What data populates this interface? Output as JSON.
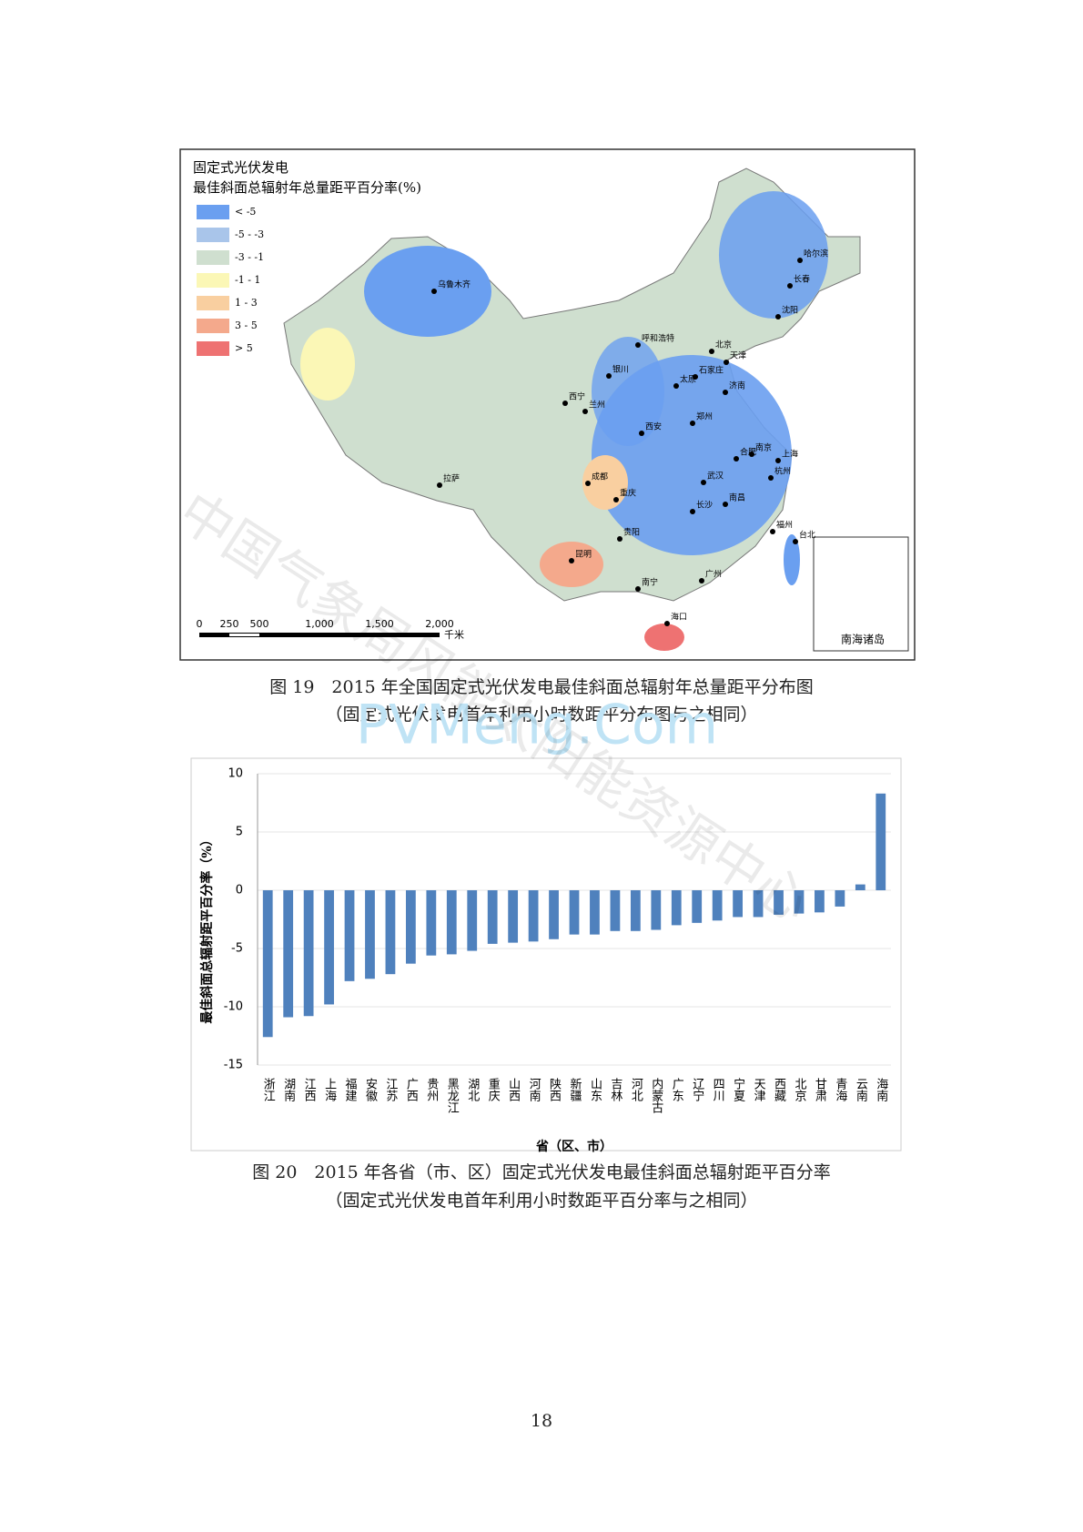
{
  "map": {
    "title": [
      "固定式光伏发电",
      "最佳斜面总辐射年总量距平百分率(%)"
    ],
    "legend": [
      {
        "label": "< -5",
        "color": "#6a9ff0"
      },
      {
        "label": "-5 - -3",
        "color": "#a9c5ea"
      },
      {
        "label": "-3 - -1",
        "color": "#cfdfcf"
      },
      {
        "label": "-1 - 1",
        "color": "#fbf7b6"
      },
      {
        "label": "1 - 3",
        "color": "#f9cfa0"
      },
      {
        "label": "3 - 5",
        "color": "#f4a98c"
      },
      {
        "label": "> 5",
        "color": "#ee7272"
      }
    ],
    "scale": [
      "0",
      "250",
      "500",
      "1,000",
      "1,500",
      "2,000"
    ],
    "scale_unit": "千米",
    "inset": "南海诸岛",
    "cities": [
      "乌鲁木齐",
      "哈尔滨",
      "长春",
      "沈阳",
      "呼和浩特",
      "北京",
      "天津",
      "石家庄",
      "太原",
      "济南",
      "银川",
      "西宁",
      "兰州",
      "西安",
      "郑州",
      "合肥",
      "南京",
      "上海",
      "杭州",
      "武汉",
      "南昌",
      "长沙",
      "成都",
      "重庆",
      "贵阳",
      "昆明",
      "拉萨",
      "福州",
      "台北",
      "广州",
      "南宁",
      "海口"
    ]
  },
  "caption19": [
    "图 19　2015 年全国固定式光伏发电最佳斜面总辐射年总量距平分布图",
    "（固定式光伏发电首年利用小时数距平分布图与之相同）"
  ],
  "chart_data": {
    "type": "bar",
    "y_label": "最佳斜面总辐射距平百分率（%）",
    "x_label": "省（区、市）",
    "categories": [
      "浙江",
      "湖南",
      "江西",
      "上海",
      "福建",
      "安徽",
      "江苏",
      "广西",
      "贵州",
      "黑龙江",
      "湖北",
      "重庆",
      "山西",
      "河南",
      "陕西",
      "新疆",
      "山东",
      "吉林",
      "河北",
      "内蒙古",
      "广东",
      "辽宁",
      "四川",
      "宁夏",
      "天津",
      "西藏",
      "北京",
      "甘肃",
      "青海",
      "云南",
      "海南"
    ],
    "values": [
      -12.6,
      -10.9,
      -10.8,
      -9.8,
      -7.8,
      -7.6,
      -7.2,
      -6.3,
      -5.6,
      -5.5,
      -5.2,
      -4.6,
      -4.5,
      -4.4,
      -4.2,
      -3.8,
      -3.8,
      -3.5,
      -3.5,
      -3.4,
      -3.0,
      -2.8,
      -2.6,
      -2.3,
      -2.3,
      -2.1,
      -2.0,
      -1.9,
      -1.4,
      0.5,
      8.3
    ],
    "color": "#4f81bd",
    "ylim": [
      -15,
      10
    ],
    "yticks": [
      -15,
      -10,
      -5,
      0,
      5,
      10
    ],
    "grid": true
  },
  "caption20": [
    "图 20　2015 年各省（市、区）固定式光伏发电最佳斜面总辐射距平百分率",
    "（固定式光伏发电首年利用小时数距平百分率与之相同）"
  ],
  "watermarks": [
    "中国气象局风能太阳能资源中心",
    "PVMeng.Com"
  ],
  "page_number": "18"
}
